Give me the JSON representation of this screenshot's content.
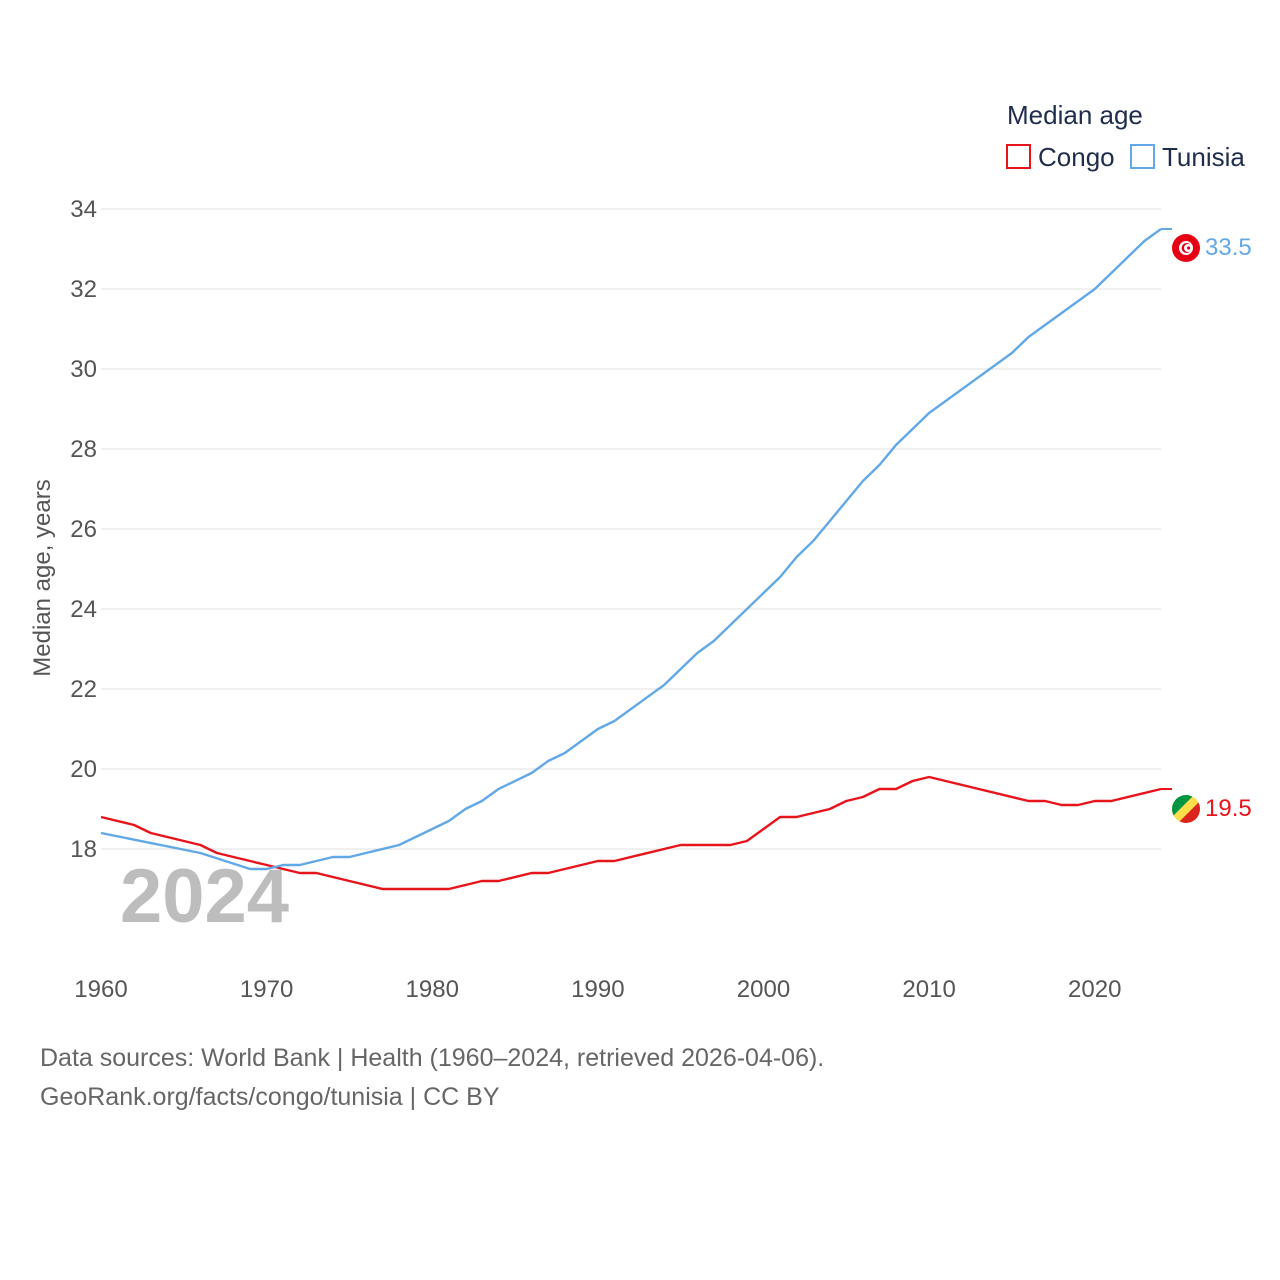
{
  "chart_data": {
    "type": "line",
    "legend_title": "Median age",
    "ylabel": "Median age, years",
    "xlabel": "",
    "year_watermark": "2024",
    "xlim": [
      1960,
      2024
    ],
    "ylim": [
      16.0,
      34.5
    ],
    "x_ticks": [
      1960,
      1970,
      1980,
      1990,
      2000,
      2010,
      2020
    ],
    "y_ticks": [
      18,
      20,
      22,
      24,
      26,
      28,
      30,
      32,
      34
    ],
    "legend_placement": "top-right",
    "series": [
      {
        "name": "Congo",
        "color": "#e8141c",
        "flag_icon": "congo-flag-icon",
        "end_label": "19.5",
        "points": [
          [
            1960,
            18.8
          ],
          [
            1962,
            18.6
          ],
          [
            1963,
            18.4
          ],
          [
            1966,
            18.1
          ],
          [
            1967,
            17.9
          ],
          [
            1970,
            17.6
          ],
          [
            1972,
            17.4
          ],
          [
            1973,
            17.4
          ],
          [
            1975,
            17.2
          ],
          [
            1977,
            17.0
          ],
          [
            1981,
            17.0
          ],
          [
            1983,
            17.2
          ],
          [
            1984,
            17.2
          ],
          [
            1986,
            17.4
          ],
          [
            1987,
            17.4
          ],
          [
            1990,
            17.7
          ],
          [
            1991,
            17.7
          ],
          [
            1995,
            18.1
          ],
          [
            1998,
            18.1
          ],
          [
            1999,
            18.2
          ],
          [
            2001,
            18.8
          ],
          [
            2002,
            18.8
          ],
          [
            2004,
            19.0
          ],
          [
            2005,
            19.2
          ],
          [
            2006,
            19.3
          ],
          [
            2007,
            19.5
          ],
          [
            2008,
            19.5
          ],
          [
            2009,
            19.7
          ],
          [
            2010,
            19.8
          ],
          [
            2016,
            19.2
          ],
          [
            2017,
            19.2
          ],
          [
            2018,
            19.1
          ],
          [
            2019,
            19.1
          ],
          [
            2020,
            19.2
          ],
          [
            2021,
            19.2
          ],
          [
            2024,
            19.5
          ]
        ]
      },
      {
        "name": "Tunisia",
        "color": "#63a8e6",
        "flag_icon": "tunisia-flag-icon",
        "end_label": "33.5",
        "points": [
          [
            1960,
            18.4
          ],
          [
            1966,
            17.9
          ],
          [
            1969,
            17.5
          ],
          [
            1970,
            17.5
          ],
          [
            1971,
            17.6
          ],
          [
            1972,
            17.6
          ],
          [
            1974,
            17.8
          ],
          [
            1975,
            17.8
          ],
          [
            1978,
            18.1
          ],
          [
            1981,
            18.7
          ],
          [
            1982,
            19.0
          ],
          [
            1983,
            19.2
          ],
          [
            1984,
            19.5
          ],
          [
            1986,
            19.9
          ],
          [
            1987,
            20.2
          ],
          [
            1988,
            20.4
          ],
          [
            1990,
            21.0
          ],
          [
            1991,
            21.2
          ],
          [
            1994,
            22.1
          ],
          [
            1996,
            22.9
          ],
          [
            1997,
            23.2
          ],
          [
            2001,
            24.8
          ],
          [
            2002,
            25.3
          ],
          [
            2003,
            25.7
          ],
          [
            2004,
            26.2
          ],
          [
            2006,
            27.2
          ],
          [
            2007,
            27.6
          ],
          [
            2008,
            28.1
          ],
          [
            2010,
            28.9
          ],
          [
            2015,
            30.4
          ],
          [
            2016,
            30.8
          ],
          [
            2020,
            32.0
          ],
          [
            2023,
            33.2
          ],
          [
            2024,
            33.5
          ]
        ]
      }
    ]
  },
  "footer": {
    "source_line": "Data sources: World Bank | Health (1960–2024, retrieved 2026-04-06).",
    "credit_line": "GeoRank.org/facts/congo/tunisia | CC BY"
  }
}
